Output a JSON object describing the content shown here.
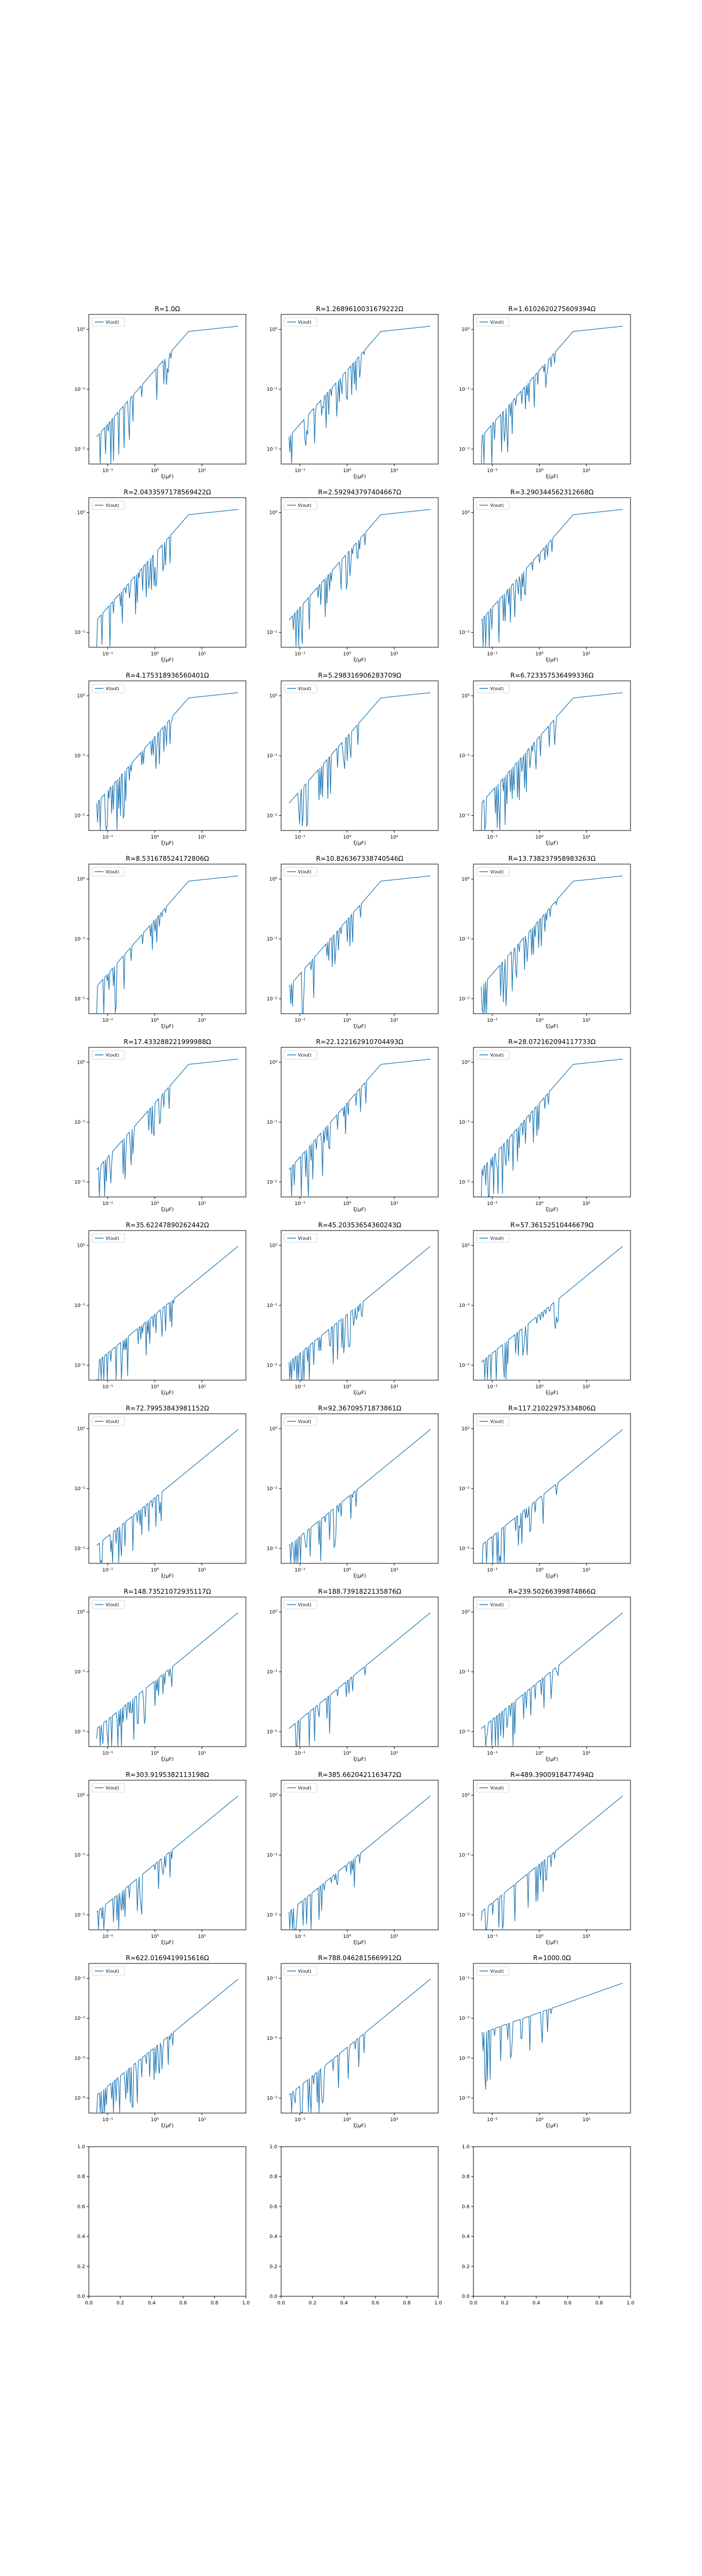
{
  "figure": {
    "line_color": "#1f77b4",
    "axes_color": "#000000",
    "background": "#ffffff"
  },
  "chart_data": [
    {
      "type": "line",
      "title": "R=1.0Ω",
      "xlabel": "ξ(μF)",
      "legend": "V(out)",
      "x_scale": "log",
      "y_scale": "log",
      "xticks": [
        "10⁻¹",
        "10⁰",
        "10¹"
      ],
      "yticks": [
        "10⁰",
        "10⁻¹",
        "10⁻²"
      ],
      "shape": "saturating",
      "seed": 1
    },
    {
      "type": "line",
      "title": "R=1.2689610031679222Ω",
      "xlabel": "ξ(μF)",
      "legend": "V(out)",
      "x_scale": "log",
      "y_scale": "log",
      "xticks": [
        "10⁻¹",
        "10⁰",
        "10¹"
      ],
      "yticks": [
        "10⁰",
        "10⁻¹",
        "10⁻²"
      ],
      "shape": "saturating",
      "seed": 2
    },
    {
      "type": "line",
      "title": "R=1.6102620275609394Ω",
      "xlabel": "ξ(μF)",
      "legend": "V(out)",
      "x_scale": "log",
      "y_scale": "log",
      "xticks": [
        "10⁻¹",
        "10⁰",
        "10¹"
      ],
      "yticks": [
        "10⁰",
        "10⁻¹",
        "10⁻²"
      ],
      "shape": "saturating",
      "seed": 3
    },
    {
      "type": "line",
      "title": "R=2.0433597178569422Ω",
      "xlabel": "ξ(μF)",
      "legend": "V(out)",
      "x_scale": "log",
      "y_scale": "log",
      "xticks": [
        "10⁻¹",
        "10⁰",
        "10¹"
      ],
      "yticks": [
        "10⁰",
        "10⁻¹"
      ],
      "shape": "saturating",
      "seed": 4
    },
    {
      "type": "line",
      "title": "R=2.592943797404667Ω",
      "xlabel": "ξ(μF)",
      "legend": "V(out)",
      "x_scale": "log",
      "y_scale": "log",
      "xticks": [
        "10⁻¹",
        "10⁰",
        "10¹"
      ],
      "yticks": [
        "10⁰",
        "10⁻¹"
      ],
      "shape": "saturating",
      "seed": 5
    },
    {
      "type": "line",
      "title": "R=3.290344562312668Ω",
      "xlabel": "ξ(μF)",
      "legend": "V(out)",
      "x_scale": "log",
      "y_scale": "log",
      "xticks": [
        "10⁻¹",
        "10⁰",
        "10¹"
      ],
      "yticks": [
        "10⁰",
        "10⁻¹"
      ],
      "shape": "saturating",
      "seed": 6
    },
    {
      "type": "line",
      "title": "R=4.175318936560401Ω",
      "xlabel": "ξ(μF)",
      "legend": "V(out)",
      "x_scale": "log",
      "y_scale": "log",
      "xticks": [
        "10⁻¹",
        "10⁰",
        "10¹"
      ],
      "yticks": [
        "10⁰",
        "10⁻¹",
        "10⁻²"
      ],
      "shape": "saturating",
      "seed": 7
    },
    {
      "type": "line",
      "title": "R=5.298316906283709Ω",
      "xlabel": "ξ(μF)",
      "legend": "V(out)",
      "x_scale": "log",
      "y_scale": "log",
      "xticks": [
        "10⁻¹",
        "10⁰",
        "10¹"
      ],
      "yticks": [
        "10⁰",
        "10⁻¹",
        "10⁻²"
      ],
      "shape": "saturating",
      "seed": 8
    },
    {
      "type": "line",
      "title": "R=6.723357536499336Ω",
      "xlabel": "ξ(μF)",
      "legend": "V(out)",
      "x_scale": "log",
      "y_scale": "log",
      "xticks": [
        "10⁻¹",
        "10⁰",
        "10¹"
      ],
      "yticks": [
        "10⁰",
        "10⁻¹",
        "10⁻²"
      ],
      "shape": "saturating",
      "seed": 9
    },
    {
      "type": "line",
      "title": "R=8.531678524172806Ω",
      "xlabel": "ξ(μF)",
      "legend": "V(out)",
      "x_scale": "log",
      "y_scale": "log",
      "xticks": [
        "10⁻¹",
        "10⁰",
        "10¹"
      ],
      "yticks": [
        "10⁰",
        "10⁻¹",
        "10⁻²"
      ],
      "shape": "saturating",
      "seed": 10
    },
    {
      "type": "line",
      "title": "R=10.826367338740546Ω",
      "xlabel": "ξ(μF)",
      "legend": "V(out)",
      "x_scale": "log",
      "y_scale": "log",
      "xticks": [
        "10⁻¹",
        "10⁰",
        "10¹"
      ],
      "yticks": [
        "10⁰",
        "10⁻¹",
        "10⁻²"
      ],
      "shape": "saturating",
      "seed": 11
    },
    {
      "type": "line",
      "title": "R=13.738237958983263Ω",
      "xlabel": "ξ(μF)",
      "legend": "V(out)",
      "x_scale": "log",
      "y_scale": "log",
      "xticks": [
        "10⁻¹",
        "10⁰",
        "10¹"
      ],
      "yticks": [
        "10⁰",
        "10⁻¹",
        "10⁻²"
      ],
      "shape": "saturating",
      "seed": 12
    },
    {
      "type": "line",
      "title": "R=17.433288221999988Ω",
      "xlabel": "ξ(μF)",
      "legend": "V(out)",
      "x_scale": "log",
      "y_scale": "log",
      "xticks": [
        "10⁻¹",
        "10⁰",
        "10¹"
      ],
      "yticks": [
        "10⁰",
        "10⁻¹",
        "10⁻²"
      ],
      "shape": "saturating",
      "seed": 13
    },
    {
      "type": "line",
      "title": "R=22.122162910704493Ω",
      "xlabel": "ξ(μF)",
      "legend": "V(out)",
      "x_scale": "log",
      "y_scale": "log",
      "xticks": [
        "10⁻¹",
        "10⁰",
        "10¹"
      ],
      "yticks": [
        "10⁰",
        "10⁻¹",
        "10⁻²"
      ],
      "shape": "saturating",
      "seed": 14
    },
    {
      "type": "line",
      "title": "R=28.072162094117733Ω",
      "xlabel": "ξ(μF)",
      "legend": "V(out)",
      "x_scale": "log",
      "y_scale": "log",
      "xticks": [
        "10⁻¹",
        "10⁰",
        "10¹"
      ],
      "yticks": [
        "10⁰",
        "10⁻¹",
        "10⁻²"
      ],
      "shape": "saturating",
      "seed": 15
    },
    {
      "type": "line",
      "title": "R=35.62247890262442Ω",
      "xlabel": "ξ(μF)",
      "legend": "V(out)",
      "x_scale": "log",
      "y_scale": "log",
      "xticks": [
        "10⁻¹",
        "10⁰",
        "10¹"
      ],
      "yticks": [
        "10⁰",
        "10⁻¹",
        "10⁻²"
      ],
      "shape": "rising",
      "seed": 16
    },
    {
      "type": "line",
      "title": "R=45.20353654360243Ω",
      "xlabel": "ξ(μF)",
      "legend": "V(out)",
      "x_scale": "log",
      "y_scale": "log",
      "xticks": [
        "10⁻¹",
        "10⁰",
        "10¹"
      ],
      "yticks": [
        "10⁰",
        "10⁻¹",
        "10⁻²"
      ],
      "shape": "rising",
      "seed": 17
    },
    {
      "type": "line",
      "title": "R=57.36152510446679Ω",
      "xlabel": "ξ(μF)",
      "legend": "V(out)",
      "x_scale": "log",
      "y_scale": "log",
      "xticks": [
        "10⁻¹",
        "10⁰",
        "10¹"
      ],
      "yticks": [
        "10⁰",
        "10⁻¹",
        "10⁻²"
      ],
      "shape": "rising",
      "seed": 18
    },
    {
      "type": "line",
      "title": "R=72.79953843981152Ω",
      "xlabel": "ξ(μF)",
      "legend": "V(out)",
      "x_scale": "log",
      "y_scale": "log",
      "xticks": [
        "10⁻¹",
        "10⁰",
        "10¹"
      ],
      "yticks": [
        "10⁰",
        "10⁻¹",
        "10⁻²"
      ],
      "shape": "rising",
      "seed": 19
    },
    {
      "type": "line",
      "title": "R=92.36709571873861Ω",
      "xlabel": "ξ(μF)",
      "legend": "V(out)",
      "x_scale": "log",
      "y_scale": "log",
      "xticks": [
        "10⁻¹",
        "10⁰",
        "10¹"
      ],
      "yticks": [
        "10⁰",
        "10⁻¹",
        "10⁻²"
      ],
      "shape": "rising",
      "seed": 20
    },
    {
      "type": "line",
      "title": "R=117.21022975334806Ω",
      "xlabel": "ξ(μF)",
      "legend": "V(out)",
      "x_scale": "log",
      "y_scale": "log",
      "xticks": [
        "10⁻¹",
        "10⁰",
        "10¹"
      ],
      "yticks": [
        "10⁰",
        "10⁻¹",
        "10⁻²"
      ],
      "shape": "rising",
      "seed": 21
    },
    {
      "type": "line",
      "title": "R=148.73521072935117Ω",
      "xlabel": "ξ(μF)",
      "legend": "V(out)",
      "x_scale": "log",
      "y_scale": "log",
      "xticks": [
        "10⁻¹",
        "10⁰",
        "10¹"
      ],
      "yticks": [
        "10⁰",
        "10⁻¹",
        "10⁻²"
      ],
      "shape": "rising",
      "seed": 22
    },
    {
      "type": "line",
      "title": "R=188.7391822135876Ω",
      "xlabel": "ξ(μF)",
      "legend": "V(out)",
      "x_scale": "log",
      "y_scale": "log",
      "xticks": [
        "10⁻¹",
        "10⁰",
        "10¹"
      ],
      "yticks": [
        "10⁰",
        "10⁻¹",
        "10⁻²"
      ],
      "shape": "rising",
      "seed": 23
    },
    {
      "type": "line",
      "title": "R=239.50266399874866Ω",
      "xlabel": "ξ(μF)",
      "legend": "V(out)",
      "x_scale": "log",
      "y_scale": "log",
      "xticks": [
        "10⁻¹",
        "10⁰",
        "10¹"
      ],
      "yticks": [
        "10⁰",
        "10⁻¹",
        "10⁻²"
      ],
      "shape": "rising",
      "seed": 24
    },
    {
      "type": "line",
      "title": "R=303.9195382113198Ω",
      "xlabel": "ξ(μF)",
      "legend": "V(out)",
      "x_scale": "log",
      "y_scale": "log",
      "xticks": [
        "10⁻¹",
        "10⁰",
        "10¹"
      ],
      "yticks": [
        "10⁰",
        "10⁻¹",
        "10⁻²"
      ],
      "shape": "rising",
      "seed": 25
    },
    {
      "type": "line",
      "title": "R=385.6620421163472Ω",
      "xlabel": "ξ(μF)",
      "legend": "V(out)",
      "x_scale": "log",
      "y_scale": "log",
      "xticks": [
        "10⁻¹",
        "10⁰",
        "10¹"
      ],
      "yticks": [
        "10⁰",
        "10⁻¹",
        "10⁻²"
      ],
      "shape": "rising",
      "seed": 26
    },
    {
      "type": "line",
      "title": "R=489.3900918477494Ω",
      "xlabel": "ξ(μF)",
      "legend": "V(out)",
      "x_scale": "log",
      "y_scale": "log",
      "xticks": [
        "10⁻¹",
        "10⁰",
        "10¹"
      ],
      "yticks": [
        "10⁰",
        "10⁻¹",
        "10⁻²"
      ],
      "shape": "rising",
      "seed": 27
    },
    {
      "type": "line",
      "title": "R=622.0169419915616Ω",
      "xlabel": "ξ(μF)",
      "legend": "V(out)",
      "x_scale": "log",
      "y_scale": "log",
      "xticks": [
        "10⁻¹",
        "10⁰",
        "10¹"
      ],
      "yticks": [
        "10⁻¹",
        "10⁻²",
        "10⁻³",
        "10⁻⁴"
      ],
      "shape": "rising",
      "seed": 28
    },
    {
      "type": "line",
      "title": "R=788.0462815669912Ω",
      "xlabel": "ξ(μF)",
      "legend": "V(out)",
      "x_scale": "log",
      "y_scale": "log",
      "xticks": [
        "10⁻¹",
        "10⁰",
        "10¹"
      ],
      "yticks": [
        "10⁻¹",
        "10⁻²",
        "10⁻³"
      ],
      "shape": "rising",
      "seed": 29
    },
    {
      "type": "line",
      "title": "R=1000.0Ω",
      "xlabel": "ξ(μF)",
      "legend": "V(out)",
      "x_scale": "log",
      "y_scale": "log",
      "xticks": [
        "10⁻¹",
        "10⁰",
        "10¹"
      ],
      "yticks": [
        "10⁻¹",
        "10⁻²",
        "10⁻³",
        "10⁻⁴"
      ],
      "shape": "flat-rising",
      "seed": 30
    },
    {
      "type": "empty",
      "xticks": [
        "0.0",
        "0.2",
        "0.4",
        "0.6",
        "0.8",
        "1.0"
      ],
      "yticks": [
        "0.0",
        "0.2",
        "0.4",
        "0.6",
        "0.8",
        "1.0"
      ]
    },
    {
      "type": "empty",
      "xticks": [
        "0.0",
        "0.2",
        "0.4",
        "0.6",
        "0.8",
        "1.0"
      ],
      "yticks": [
        "0.0",
        "0.2",
        "0.4",
        "0.6",
        "0.8",
        "1.0"
      ]
    },
    {
      "type": "empty",
      "xticks": [
        "0.0",
        "0.2",
        "0.4",
        "0.6",
        "0.8",
        "1.0"
      ],
      "yticks": [
        "0.0",
        "0.2",
        "0.4",
        "0.6",
        "0.8",
        "1.0"
      ]
    }
  ]
}
